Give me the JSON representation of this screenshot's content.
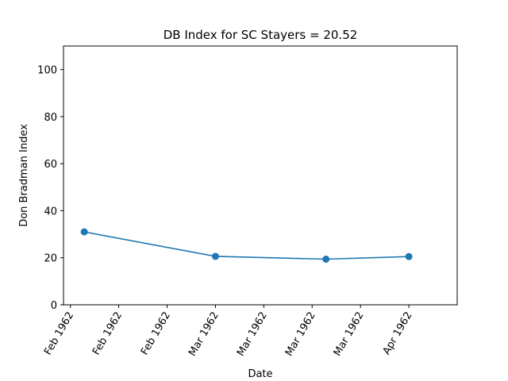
{
  "chart_data": {
    "type": "line",
    "title": "DB Index for SC Stayers = 20.52",
    "xlabel": "Date",
    "ylabel": "Don Bradman Index",
    "ylim": [
      0,
      110
    ],
    "yticks": [
      0,
      20,
      40,
      60,
      80,
      100
    ],
    "xlim": [
      "1962-02-05",
      "1962-04-03"
    ],
    "xticks": [
      {
        "date": "1962-02-06",
        "label": "Feb 1962"
      },
      {
        "date": "1962-02-13",
        "label": "Feb 1962"
      },
      {
        "date": "1962-02-20",
        "label": "Feb 1962"
      },
      {
        "date": "1962-02-27",
        "label": "Mar 1962"
      },
      {
        "date": "1962-03-06",
        "label": "Mar 1962"
      },
      {
        "date": "1962-03-13",
        "label": "Mar 1962"
      },
      {
        "date": "1962-03-20",
        "label": "Mar 1962"
      },
      {
        "date": "1962-03-27",
        "label": "Apr 1962"
      }
    ],
    "series": [
      {
        "color": "#1f77b4",
        "points": [
          {
            "date": "1962-02-08",
            "value": 31.0
          },
          {
            "date": "1962-02-27",
            "value": 20.6
          },
          {
            "date": "1962-03-15",
            "value": 19.4
          },
          {
            "date": "1962-03-27",
            "value": 20.5
          }
        ]
      }
    ],
    "grid": false
  }
}
